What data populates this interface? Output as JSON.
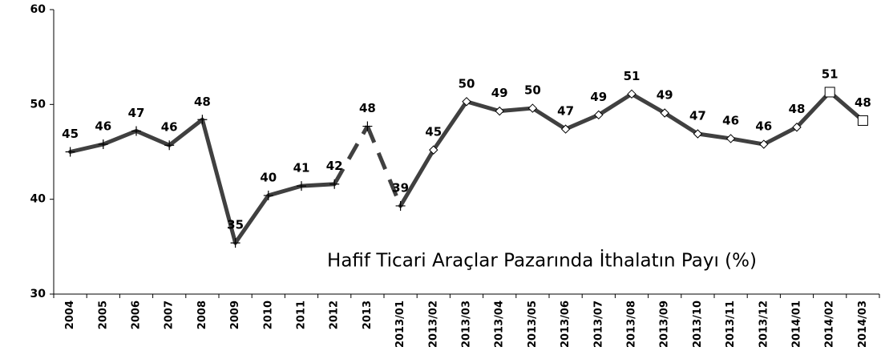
{
  "chart_data": {
    "type": "line",
    "title": "Hafif Ticari Araçlar Pazarında İthalatın Payı (%)",
    "categories": [
      "2004",
      "2005",
      "2006",
      "2007",
      "2008",
      "2009",
      "2010",
      "2011",
      "2012",
      "2013",
      "2013/01",
      "2013/02",
      "2013/03",
      "2013/04",
      "2013/05",
      "2013/06",
      "2013/07",
      "2013/08",
      "2013/09",
      "2013/10",
      "2013/11",
      "2013/12",
      "2014/01",
      "2014/02",
      "2014/03"
    ],
    "series": [
      {
        "color": "#404040",
        "values": [
          45.0,
          45.8,
          47.2,
          45.7,
          48.4,
          35.4,
          40.4,
          41.4,
          41.6,
          47.7,
          39.3,
          45.2,
          50.3,
          49.3,
          49.6,
          47.4,
          48.9,
          51.1,
          49.1,
          46.9,
          46.4,
          45.8,
          47.6,
          51.3,
          48.3
        ],
        "value_labels": [
          "45",
          "46",
          "47",
          "46",
          "48",
          "35",
          "40",
          "41",
          "42",
          "48",
          "39",
          "45",
          "50",
          "49",
          "50",
          "47",
          "49",
          "51",
          "49",
          "47",
          "46",
          "46",
          "48",
          "51",
          "48"
        ],
        "markers": [
          "plus",
          "plus",
          "plus",
          "plus",
          "plus",
          "plus",
          "plus",
          "plus",
          "plus",
          "plus",
          "plus",
          "diamond",
          "diamond",
          "diamond",
          "diamond",
          "diamond",
          "diamond",
          "diamond",
          "diamond",
          "diamond",
          "diamond",
          "diamond",
          "diamond",
          "square",
          "square"
        ],
        "dashed_segments": [
          8,
          9
        ]
      }
    ],
    "ylim": [
      30,
      60
    ],
    "yticks": [
      30,
      40,
      50,
      60
    ]
  }
}
